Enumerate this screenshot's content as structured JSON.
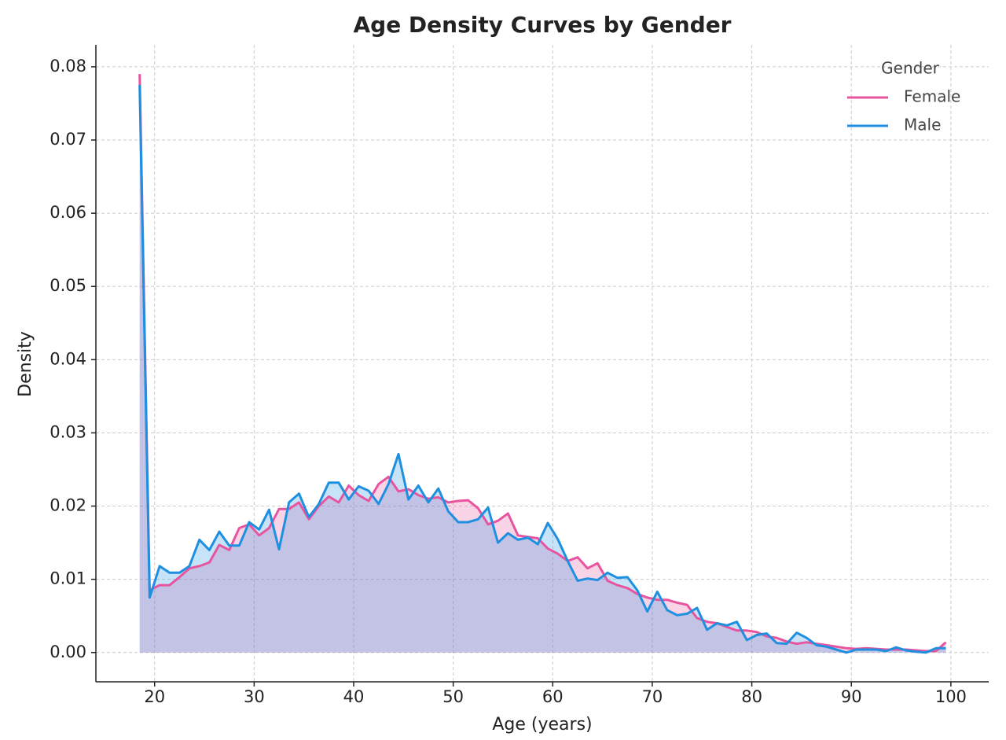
{
  "chart_data": {
    "type": "area-line",
    "title": "Age Density Curves by Gender",
    "xlabel": "Age (years)",
    "ylabel": "Density",
    "legend_title": "Gender",
    "legend": "upper right",
    "grid": true,
    "x": [
      18.5,
      19.5,
      20.5,
      21.5,
      22.5,
      23.5,
      24.5,
      25.5,
      26.5,
      27.5,
      28.5,
      29.5,
      30.5,
      31.5,
      32.5,
      33.5,
      34.5,
      35.5,
      36.5,
      37.5,
      38.5,
      39.5,
      40.5,
      41.5,
      42.5,
      43.5,
      44.5,
      45.5,
      46.5,
      47.5,
      48.5,
      49.5,
      50.5,
      51.5,
      52.5,
      53.5,
      54.5,
      55.5,
      56.5,
      57.5,
      58.5,
      59.5,
      60.5,
      61.5,
      62.5,
      63.5,
      64.5,
      65.5,
      66.5,
      67.5,
      68.5,
      69.5,
      70.5,
      71.5,
      72.5,
      73.5,
      74.5,
      75.5,
      76.5,
      77.5,
      78.5,
      79.5,
      80.5,
      81.5,
      82.5,
      83.5,
      84.5,
      85.5,
      86.5,
      87.5,
      88.5,
      89.5,
      90.5,
      91.5,
      92.5,
      93.5,
      94.5,
      95.5,
      96.5,
      97.5,
      98.5,
      99.5
    ],
    "series": [
      {
        "name": "Female",
        "color": "#e8559f",
        "values": [
          0.079,
          0.0085,
          0.0092,
          0.0092,
          0.0103,
          0.0115,
          0.0118,
          0.0123,
          0.0147,
          0.014,
          0.017,
          0.0175,
          0.016,
          0.017,
          0.0196,
          0.0196,
          0.0205,
          0.0182,
          0.02,
          0.0213,
          0.0205,
          0.0228,
          0.0215,
          0.0207,
          0.023,
          0.024,
          0.022,
          0.0223,
          0.0215,
          0.021,
          0.0212,
          0.0205,
          0.0207,
          0.0208,
          0.0197,
          0.0175,
          0.018,
          0.019,
          0.016,
          0.0158,
          0.0156,
          0.0142,
          0.0135,
          0.0125,
          0.013,
          0.0115,
          0.0122,
          0.0098,
          0.0092,
          0.0088,
          0.008,
          0.0075,
          0.0072,
          0.0072,
          0.0068,
          0.0065,
          0.0047,
          0.0042,
          0.004,
          0.0035,
          0.003,
          0.003,
          0.0028,
          0.0022,
          0.002,
          0.0015,
          0.0012,
          0.0014,
          0.0012,
          0.001,
          0.0008,
          0.0006,
          0.0005,
          0.0006,
          0.0005,
          0.0004,
          0.0004,
          0.0004,
          0.0003,
          0.0002,
          0.0002,
          0.0014
        ]
      },
      {
        "name": "Male",
        "color": "#1f8fe0",
        "values": [
          0.0775,
          0.0075,
          0.0118,
          0.0109,
          0.0109,
          0.0118,
          0.0154,
          0.014,
          0.0165,
          0.0146,
          0.0146,
          0.0178,
          0.0168,
          0.0195,
          0.0141,
          0.0205,
          0.0217,
          0.0185,
          0.0203,
          0.0232,
          0.0232,
          0.0209,
          0.0227,
          0.0221,
          0.0203,
          0.023,
          0.0271,
          0.0209,
          0.0228,
          0.0205,
          0.0224,
          0.0193,
          0.0178,
          0.0178,
          0.0182,
          0.0198,
          0.015,
          0.0163,
          0.0154,
          0.0157,
          0.0148,
          0.0177,
          0.0155,
          0.0125,
          0.0098,
          0.0101,
          0.0099,
          0.0109,
          0.0102,
          0.0103,
          0.0085,
          0.0056,
          0.0083,
          0.0058,
          0.0051,
          0.0053,
          0.0061,
          0.0031,
          0.004,
          0.0037,
          0.0042,
          0.0017,
          0.0024,
          0.0026,
          0.0013,
          0.0012,
          0.0027,
          0.002,
          0.001,
          0.0008,
          0.0004,
          0.0,
          0.0004,
          0.0004,
          0.0004,
          0.0002,
          0.0007,
          0.0003,
          0.0001,
          0.0,
          0.0006,
          0.0006
        ]
      }
    ],
    "xlim": [
      14.1,
      103.8
    ],
    "xticks": [
      20,
      30,
      40,
      50,
      60,
      70,
      80,
      90,
      100
    ],
    "ylim": [
      -0.004,
      0.083
    ],
    "yticks": [
      {
        "value": 0,
        "label": "0.00"
      },
      {
        "value": 0.01,
        "label": "0.01"
      },
      {
        "value": 0.02,
        "label": "0.02"
      },
      {
        "value": 0.03,
        "label": "0.03"
      },
      {
        "value": 0.04,
        "label": "0.04"
      },
      {
        "value": 0.05,
        "label": "0.05"
      },
      {
        "value": 0.06,
        "label": "0.06"
      },
      {
        "value": 0.07,
        "label": "0.07"
      },
      {
        "value": 0.08,
        "label": "0.08"
      }
    ]
  }
}
